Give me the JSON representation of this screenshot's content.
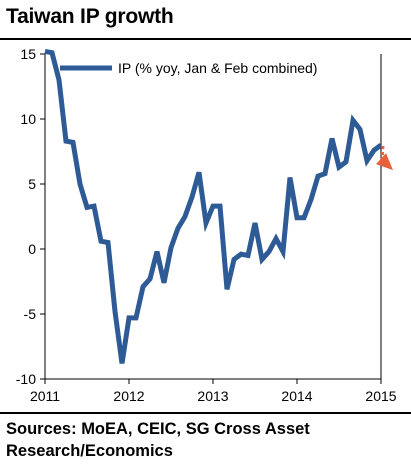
{
  "title": "Taiwan IP growth",
  "source": "Sources: MoEA, CEIC, SG Cross Asset Research/Economics",
  "colors": {
    "series": "#2e5b95",
    "forecast_arrow": "#e8603c",
    "frame": "#000000"
  },
  "chart_data": {
    "type": "line",
    "title": "Taiwan IP growth",
    "xlabel": "",
    "ylabel": "",
    "ylim": [
      -10,
      15
    ],
    "y_ticks": [
      "15",
      "10",
      "5",
      "0",
      "-5",
      "-10"
    ],
    "x_ticks": [
      "2011",
      "2012",
      "2013",
      "2014",
      "2015"
    ],
    "grid": false,
    "legend": "top",
    "series": [
      {
        "name": "IP (% yoy, Jan & Feb combined)",
        "x": [
          "2011-01",
          "2011-02",
          "2011-03",
          "2011-04",
          "2011-05",
          "2011-06",
          "2011-07",
          "2011-08",
          "2011-09",
          "2011-10",
          "2011-11",
          "2011-12",
          "2012-01",
          "2012-02",
          "2012-03",
          "2012-04",
          "2012-05",
          "2012-06",
          "2012-07",
          "2012-08",
          "2012-09",
          "2012-10",
          "2012-11",
          "2012-12",
          "2013-01",
          "2013-02",
          "2013-03",
          "2013-04",
          "2013-05",
          "2013-06",
          "2013-07",
          "2013-08",
          "2013-09",
          "2013-10",
          "2013-11",
          "2013-12",
          "2014-01",
          "2014-02",
          "2014-03",
          "2014-04",
          "2014-05",
          "2014-06",
          "2014-07",
          "2014-08",
          "2014-09",
          "2014-10",
          "2014-11",
          "2014-12",
          "2015-01"
        ],
        "values": [
          15.2,
          15.1,
          13.0,
          8.3,
          8.2,
          5.0,
          3.2,
          3.3,
          0.6,
          0.5,
          -4.8,
          -8.8,
          -5.3,
          -5.3,
          -2.9,
          -2.3,
          -0.2,
          -2.6,
          0.1,
          1.6,
          2.5,
          4.0,
          5.9,
          2.0,
          3.3,
          3.3,
          -3.1,
          -0.8,
          -0.4,
          -0.5,
          2.0,
          -0.8,
          -0.2,
          0.8,
          -0.2,
          5.5,
          2.4,
          2.4,
          3.8,
          5.6,
          5.8,
          8.5,
          6.3,
          6.7,
          9.9,
          9.2,
          6.8,
          7.6,
          8.0
        ]
      }
    ],
    "annotations": [
      {
        "type": "arrow",
        "description": "forecast trend arrow",
        "from": [
          "2015-01",
          8.0
        ],
        "to": [
          "2015-03",
          6.3
        ]
      }
    ]
  }
}
